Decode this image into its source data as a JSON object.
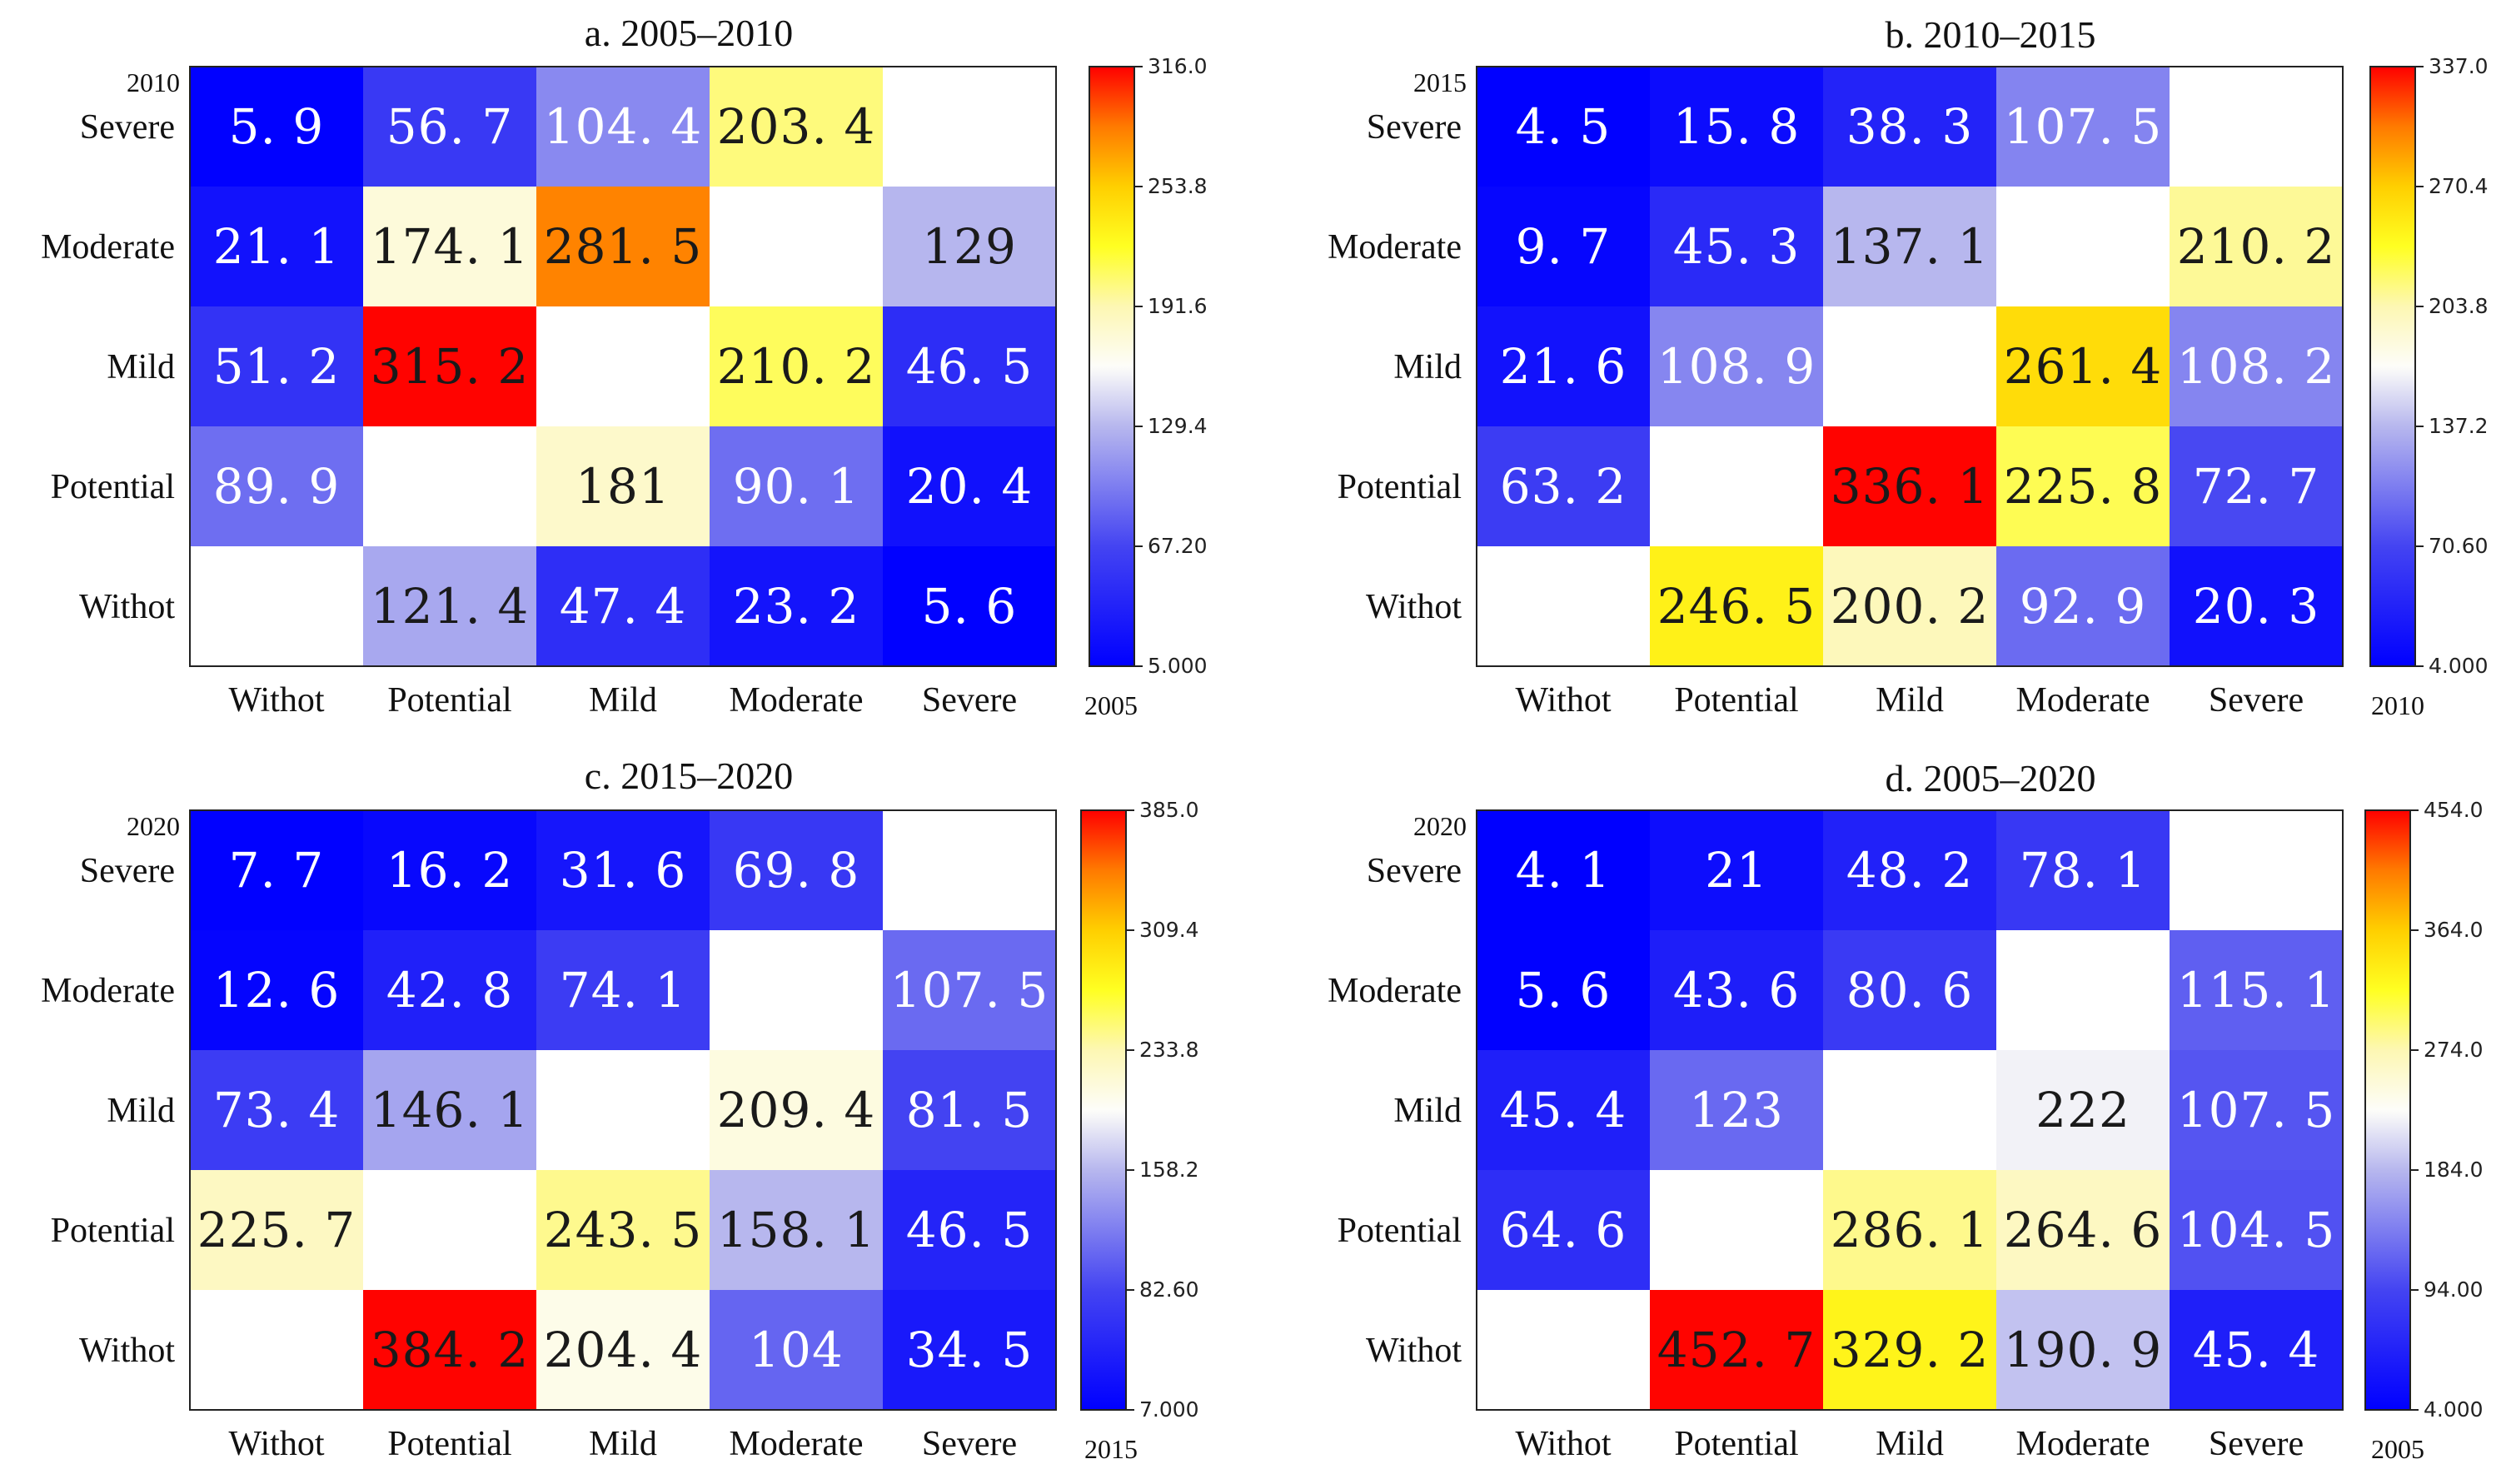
{
  "chart_data": [
    {
      "type": "heatmap",
      "title": "a. 2005–2010",
      "x_year": "2005",
      "y_year": "2010",
      "x_categories": [
        "Withot",
        "Potential",
        "Mild",
        "Moderate",
        "Severe"
      ],
      "y_categories": [
        "Severe",
        "Moderate",
        "Mild",
        "Potential",
        "Withot"
      ],
      "values": [
        [
          5.9,
          56.7,
          104.4,
          203.4,
          null
        ],
        [
          21.1,
          174.1,
          281.5,
          null,
          129
        ],
        [
          51.2,
          315.2,
          null,
          210.2,
          46.5
        ],
        [
          89.9,
          null,
          181,
          90.1,
          20.4
        ],
        [
          null,
          121.4,
          47.4,
          23.2,
          5.6
        ]
      ],
      "labels": [
        [
          "5. 9",
          "56. 7",
          "104. 4",
          "203. 4",
          ""
        ],
        [
          "21. 1",
          "174. 1",
          "281. 5",
          "",
          "129"
        ],
        [
          "51. 2",
          "315. 2",
          "",
          "210. 2",
          "46. 5"
        ],
        [
          "89. 9",
          "",
          "181",
          "90. 1",
          "20. 4"
        ],
        [
          "",
          "121. 4",
          "47. 4",
          "23. 2",
          "5. 6"
        ]
      ],
      "colorbar": {
        "min": 5.0,
        "max": 316.0,
        "ticks": [
          "5.000",
          "67.20",
          "129.4",
          "191.6",
          "253.8",
          "316.0"
        ]
      }
    },
    {
      "type": "heatmap",
      "title": "b. 2010–2015",
      "x_year": "2010",
      "y_year": "2015",
      "x_categories": [
        "Withot",
        "Potential",
        "Mild",
        "Moderate",
        "Severe"
      ],
      "y_categories": [
        "Severe",
        "Moderate",
        "Mild",
        "Potential",
        "Withot"
      ],
      "values": [
        [
          4.5,
          15.8,
          38.3,
          107.5,
          null
        ],
        [
          9.7,
          45.3,
          137.1,
          null,
          210.2
        ],
        [
          21.6,
          108.9,
          null,
          261.4,
          108.2
        ],
        [
          63.2,
          null,
          336.1,
          225.8,
          72.7
        ],
        [
          null,
          246.5,
          200.2,
          92.9,
          20.3
        ]
      ],
      "labels": [
        [
          "4. 5",
          "15. 8",
          "38. 3",
          "107. 5",
          ""
        ],
        [
          "9. 7",
          "45. 3",
          "137. 1",
          "",
          "210. 2"
        ],
        [
          "21. 6",
          "108. 9",
          "",
          "261. 4",
          "108. 2"
        ],
        [
          "63. 2",
          "",
          "336. 1",
          "225. 8",
          "72. 7"
        ],
        [
          "",
          "246. 5",
          "200. 2",
          "92. 9",
          "20. 3"
        ]
      ],
      "colorbar": {
        "min": 4.0,
        "max": 337.0,
        "ticks": [
          "4.000",
          "70.60",
          "137.2",
          "203.8",
          "270.4",
          "337.0"
        ]
      }
    },
    {
      "type": "heatmap",
      "title": "c. 2015–2020",
      "x_year": "2015",
      "y_year": "2020",
      "x_categories": [
        "Withot",
        "Potential",
        "Mild",
        "Moderate",
        "Severe"
      ],
      "y_categories": [
        "Severe",
        "Moderate",
        "Mild",
        "Potential",
        "Withot"
      ],
      "values": [
        [
          7.7,
          16.2,
          31.6,
          69.8,
          null
        ],
        [
          12.6,
          42.8,
          74.1,
          null,
          107.5
        ],
        [
          73.4,
          146.1,
          null,
          209.4,
          81.5
        ],
        [
          225.7,
          null,
          243.5,
          158.1,
          46.5
        ],
        [
          null,
          384.2,
          204.4,
          104,
          34.5
        ]
      ],
      "labels": [
        [
          "7. 7",
          "16. 2",
          "31. 6",
          "69. 8",
          ""
        ],
        [
          "12. 6",
          "42. 8",
          "74. 1",
          "",
          "107. 5"
        ],
        [
          "73. 4",
          "146. 1",
          "",
          "209. 4",
          "81. 5"
        ],
        [
          "225. 7",
          "",
          "243. 5",
          "158. 1",
          "46. 5"
        ],
        [
          "",
          "384. 2",
          "204. 4",
          "104",
          "34. 5"
        ]
      ],
      "colorbar": {
        "min": 7.0,
        "max": 385.0,
        "ticks": [
          "7.000",
          "82.60",
          "158.2",
          "233.8",
          "309.4",
          "385.0"
        ]
      }
    },
    {
      "type": "heatmap",
      "title": "d. 2005–2020",
      "x_year": "2005",
      "y_year": "2020",
      "x_categories": [
        "Withot",
        "Potential",
        "Mild",
        "Moderate",
        "Severe"
      ],
      "y_categories": [
        "Severe",
        "Moderate",
        "Mild",
        "Potential",
        "Withot"
      ],
      "values": [
        [
          4.1,
          21,
          48.2,
          78.1,
          null
        ],
        [
          5.6,
          43.6,
          80.6,
          null,
          115.1
        ],
        [
          45.4,
          123,
          null,
          222,
          107.5
        ],
        [
          64.6,
          null,
          286.1,
          264.6,
          104.5
        ],
        [
          null,
          452.7,
          329.2,
          190.9,
          45.4
        ]
      ],
      "labels": [
        [
          "4. 1",
          "21",
          "48. 2",
          "78. 1",
          ""
        ],
        [
          "5. 6",
          "43. 6",
          "80. 6",
          "",
          "115. 1"
        ],
        [
          "45. 4",
          "123",
          "",
          "222",
          "107. 5"
        ],
        [
          "64. 6",
          "",
          "286. 1",
          "264. 6",
          "104. 5"
        ],
        [
          "",
          "452. 7",
          "329. 2",
          "190. 9",
          "45. 4"
        ]
      ],
      "colorbar": {
        "min": 4.0,
        "max": 454.0,
        "ticks": [
          "4.000",
          "94.00",
          "184.0",
          "274.0",
          "364.0",
          "454.0"
        ]
      }
    }
  ]
}
